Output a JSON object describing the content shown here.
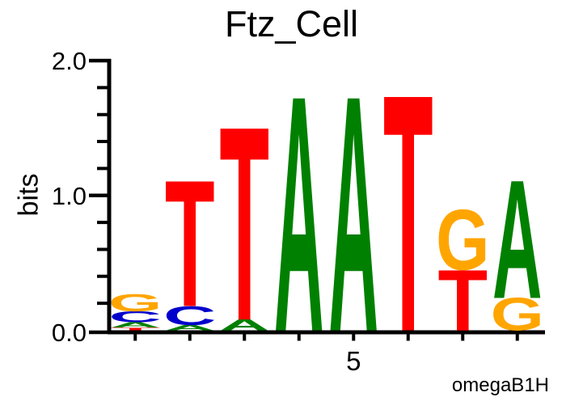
{
  "chart_data": {
    "type": "sequence-logo",
    "title": "Ftz_Cell",
    "ylabel": "bits",
    "ylim": [
      0,
      2.0
    ],
    "y_major_ticks": [
      0.0,
      1.0,
      2.0
    ],
    "y_major_tick_labels": [
      "0.0",
      "1.0",
      "2.0"
    ],
    "y_minor_tick_step": 0.2,
    "num_positions": 8,
    "x_tick_labels": [
      {
        "position": 5,
        "label": "5"
      }
    ],
    "attribution": "omegaB1H",
    "colors": {
      "A": "#008000",
      "C": "#0000CC",
      "G": "#FFA500",
      "T": "#FF0000"
    },
    "axis_color": "#000000",
    "positions": [
      {
        "position": 1,
        "stack": [
          {
            "base": "T",
            "bits": 0.02
          },
          {
            "base": "A",
            "bits": 0.04
          },
          {
            "base": "C",
            "bits": 0.08
          },
          {
            "base": "G",
            "bits": 0.13
          }
        ]
      },
      {
        "position": 2,
        "stack": [
          {
            "base": "A",
            "bits": 0.04
          },
          {
            "base": "C",
            "bits": 0.14
          },
          {
            "base": "T",
            "bits": 0.94
          }
        ]
      },
      {
        "position": 3,
        "stack": [
          {
            "base": "A",
            "bits": 0.08
          },
          {
            "base": "T",
            "bits": 1.44
          }
        ]
      },
      {
        "position": 4,
        "stack": [
          {
            "base": "A",
            "bits": 1.75
          }
        ]
      },
      {
        "position": 5,
        "stack": [
          {
            "base": "A",
            "bits": 1.75
          }
        ]
      },
      {
        "position": 6,
        "stack": [
          {
            "base": "T",
            "bits": 1.76
          }
        ]
      },
      {
        "position": 7,
        "stack": [
          {
            "base": "T",
            "bits": 0.45
          },
          {
            "base": "G",
            "bits": 0.45
          }
        ]
      },
      {
        "position": 8,
        "stack": [
          {
            "base": "G",
            "bits": 0.24
          },
          {
            "base": "A",
            "bits": 0.88
          }
        ]
      }
    ]
  }
}
